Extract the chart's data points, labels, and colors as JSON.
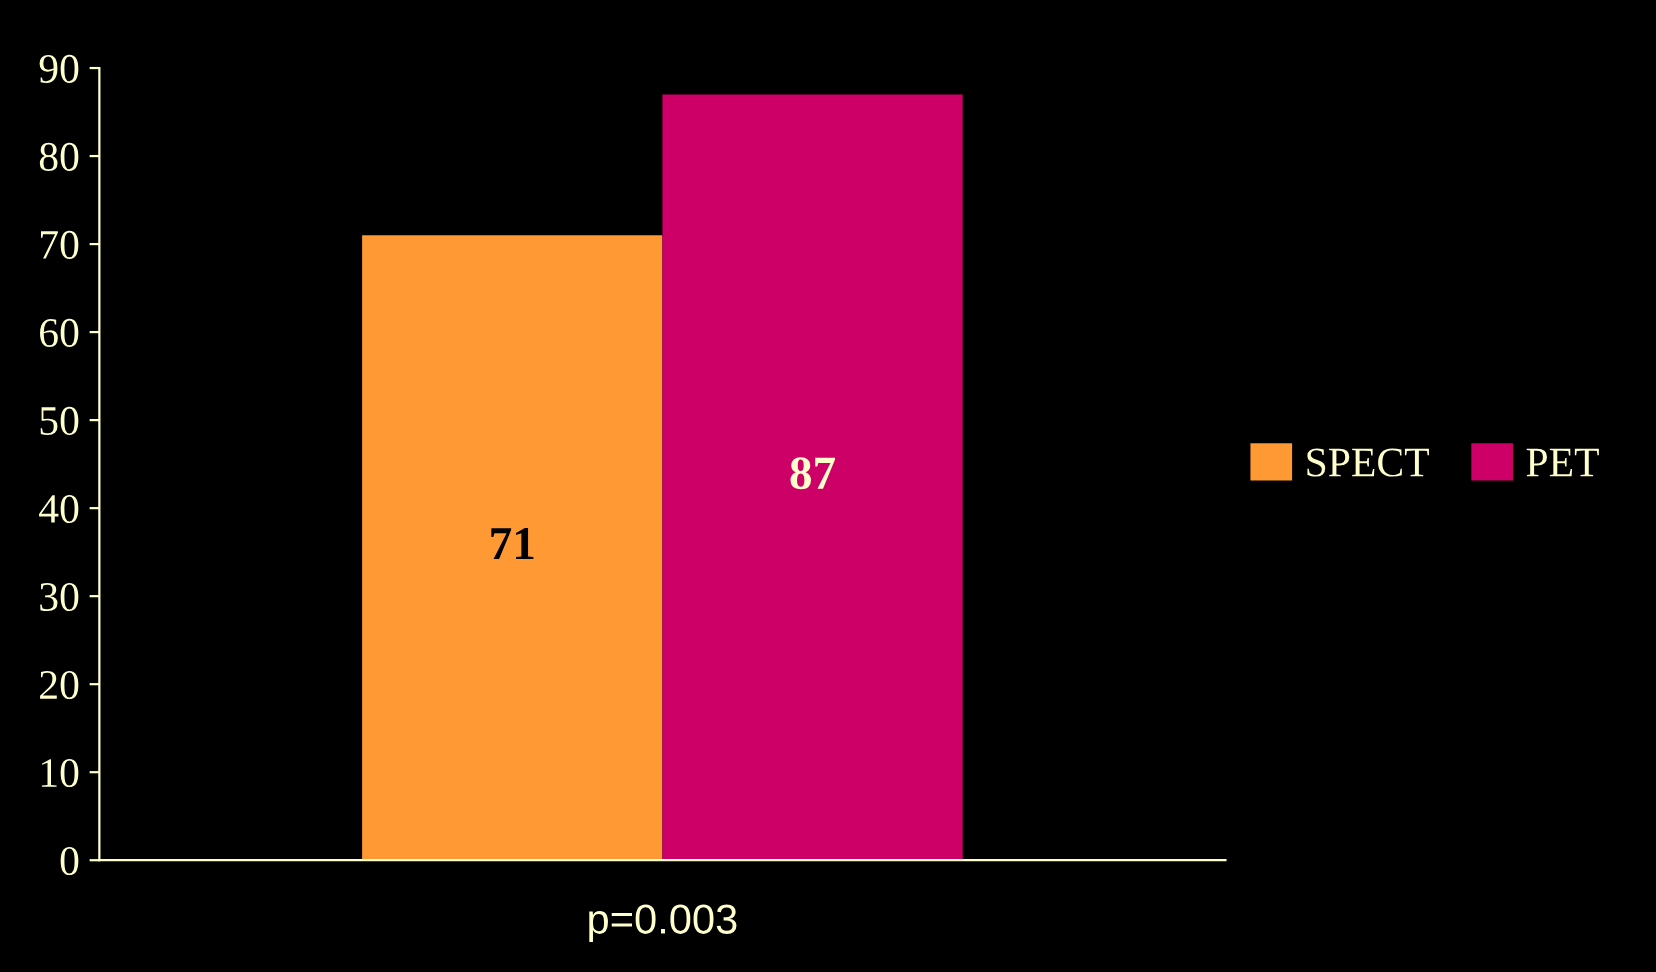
{
  "chart_data": {
    "type": "bar",
    "categories": [
      null
    ],
    "series": [
      {
        "name": "SPECT",
        "color": "#ff9933",
        "values": [
          71
        ]
      },
      {
        "name": "PET",
        "color": "#cc0066",
        "values": [
          87
        ]
      }
    ],
    "xlabel": "p=0.003",
    "ylim": [
      0,
      90
    ],
    "yticks": [
      0,
      10,
      20,
      30,
      40,
      50,
      60,
      70,
      80,
      90
    ],
    "data_labels": true,
    "legend": "right",
    "grid": false
  }
}
